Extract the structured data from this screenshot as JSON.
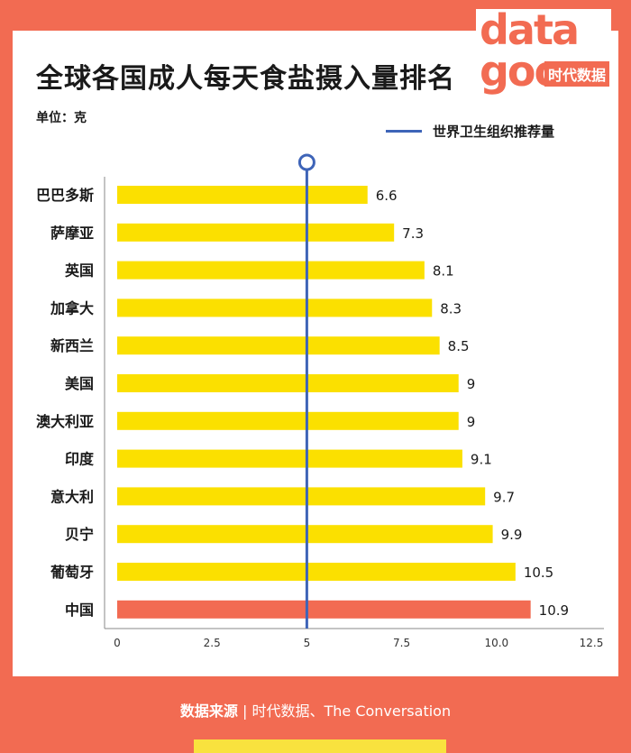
{
  "title": "全球各国成人每天食盐摄入量排名",
  "unit_label": "单位：克",
  "logo": {
    "word_top": "data",
    "word_bottom": "goo",
    "brand": "时代数据"
  },
  "footer": {
    "source_label": "数据来源",
    "source_text": "时代数据、The Conversation"
  },
  "colors": {
    "bar": "#FBE000",
    "highlight": "#F26B52",
    "reference": "#3E64B8"
  },
  "chart_data": {
    "type": "bar",
    "orientation": "horizontal",
    "categories": [
      "巴巴多斯",
      "萨摩亚",
      "英国",
      "加拿大",
      "新西兰",
      "美国",
      "澳大利亚",
      "印度",
      "意大利",
      "贝宁",
      "葡萄牙",
      "中国"
    ],
    "values": [
      6.6,
      7.3,
      8.1,
      8.3,
      8.5,
      9,
      9,
      9.1,
      9.7,
      9.9,
      10.5,
      10.9
    ],
    "value_labels": [
      "6.6",
      "7.3",
      "8.1",
      "8.3",
      "8.5",
      "9",
      "9",
      "9.1",
      "9.7",
      "9.9",
      "10.5",
      "10.9"
    ],
    "highlight_category": "中国",
    "reference_line": {
      "value": 5,
      "label": "世界卫生组织推荐量"
    },
    "xlim": [
      0,
      12.5
    ],
    "x_ticks": [
      "0",
      "2.5",
      "5",
      "7.5",
      "10.0",
      "12.5"
    ],
    "x_tick_values": [
      0,
      2.5,
      5,
      7.5,
      10,
      12.5
    ],
    "grid": false
  }
}
